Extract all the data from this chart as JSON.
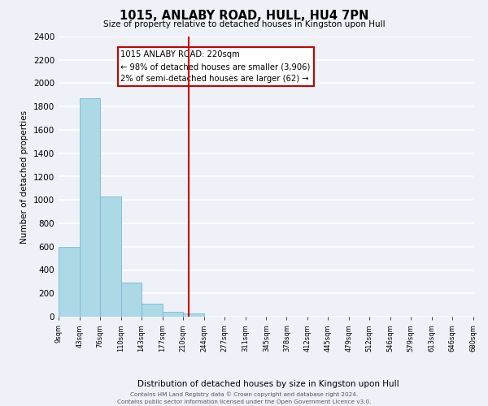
{
  "title": "1015, ANLABY ROAD, HULL, HU4 7PN",
  "subtitle": "Size of property relative to detached houses in Kingston upon Hull",
  "xlabel": "Distribution of detached houses by size in Kingston upon Hull",
  "ylabel": "Number of detached properties",
  "bar_color": "#add8e6",
  "bar_edge_color": "#7ab8d8",
  "bin_edges": [
    9,
    43,
    76,
    110,
    143,
    177,
    210,
    244,
    277,
    311,
    345,
    378,
    412,
    445,
    479,
    512,
    546,
    579,
    613,
    646,
    680
  ],
  "bar_heights": [
    600,
    1870,
    1030,
    290,
    110,
    45,
    25,
    0,
    0,
    0,
    0,
    0,
    0,
    0,
    0,
    0,
    0,
    0,
    0,
    0
  ],
  "tick_labels": [
    "9sqm",
    "43sqm",
    "76sqm",
    "110sqm",
    "143sqm",
    "177sqm",
    "210sqm",
    "244sqm",
    "277sqm",
    "311sqm",
    "345sqm",
    "378sqm",
    "412sqm",
    "445sqm",
    "479sqm",
    "512sqm",
    "546sqm",
    "579sqm",
    "613sqm",
    "646sqm",
    "680sqm"
  ],
  "vline_x": 220,
  "vline_color": "#cc0000",
  "annotation_text_line1": "1015 ANLABY ROAD: 220sqm",
  "annotation_text_line2": "← 98% of detached houses are smaller (3,906)",
  "annotation_text_line3": "2% of semi-detached houses are larger (62) →",
  "ylim": [
    0,
    2400
  ],
  "yticks": [
    0,
    200,
    400,
    600,
    800,
    1000,
    1200,
    1400,
    1600,
    1800,
    2000,
    2200,
    2400
  ],
  "background_color": "#eef2f8",
  "grid_color": "#ffffff",
  "footer_line1": "Contains HM Land Registry data © Crown copyright and database right 2024.",
  "footer_line2": "Contains public sector information licensed under the Open Government Licence v3.0."
}
